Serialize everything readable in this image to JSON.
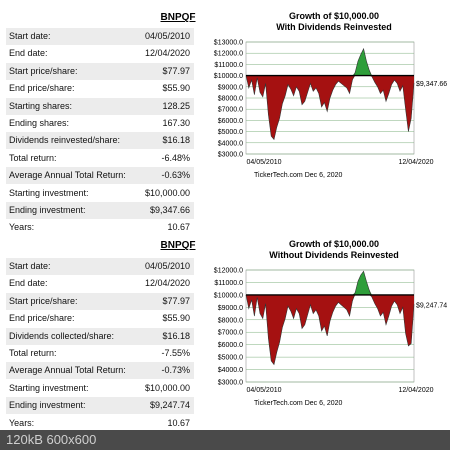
{
  "panels": [
    {
      "ticker": "BNPQF",
      "stats": [
        {
          "label": "Start date:",
          "value": "04/05/2010"
        },
        {
          "label": "End date:",
          "value": "12/04/2020"
        },
        {
          "label": "Start price/share:",
          "value": "$77.97"
        },
        {
          "label": "End price/share:",
          "value": "$55.90"
        },
        {
          "label": "Starting shares:",
          "value": "128.25"
        },
        {
          "label": "Ending shares:",
          "value": "167.30"
        },
        {
          "label": "Dividends reinvested/share:",
          "value": "$16.18"
        },
        {
          "label": "Total return:",
          "value": "-6.48%"
        },
        {
          "label": "Average Annual Total Return:",
          "value": "-0.63%"
        },
        {
          "label": "Starting investment:",
          "value": "$10,000.00"
        },
        {
          "label": "Ending investment:",
          "value": "$9,347.66"
        },
        {
          "label": "Years:",
          "value": "10.67"
        }
      ]
    },
    {
      "ticker": "BNPQF",
      "stats": [
        {
          "label": "Start date:",
          "value": "04/05/2010"
        },
        {
          "label": "End date:",
          "value": "12/04/2020"
        },
        {
          "label": "Start price/share:",
          "value": "$77.97"
        },
        {
          "label": "End price/share:",
          "value": "$55.90"
        },
        {
          "label": "Dividends collected/share:",
          "value": "$16.18"
        },
        {
          "label": "Total return:",
          "value": "-7.55%"
        },
        {
          "label": "Average Annual Total Return:",
          "value": "-0.73%"
        },
        {
          "label": "Starting investment:",
          "value": "$10,000.00"
        },
        {
          "label": "Ending investment:",
          "value": "$9,247.74"
        },
        {
          "label": "Years:",
          "value": "10.67"
        }
      ]
    }
  ],
  "chart_data": [
    {
      "type": "area",
      "title": "Growth of $10,000.00",
      "subtitle": "With Dividends Reinvested",
      "baseline": 10000,
      "ylim": [
        3000,
        13000
      ],
      "yticks": [
        "$13000.0",
        "$12000.0",
        "$11000.0",
        "$10000.0",
        "$9000.0",
        "$8000.0",
        "$7000.0",
        "$6000.0",
        "$5000.0",
        "$4000.0",
        "$3000.0"
      ],
      "x_start_label": "04/05/2010",
      "x_end_label": "12/04/2020",
      "end_value_label": "$9,347.66",
      "credit": "TickerTech.com  Dec 6, 2020",
      "values": [
        10000,
        8900,
        9600,
        8300,
        9800,
        8500,
        8100,
        9300,
        6500,
        4600,
        4300,
        5400,
        6200,
        7500,
        8200,
        9200,
        8800,
        8200,
        9000,
        8600,
        7400,
        7700,
        8500,
        9300,
        8600,
        8900,
        8400,
        7200,
        7600,
        6800,
        8000,
        8700,
        9200,
        9500,
        9300,
        9100,
        8900,
        8400,
        9600,
        10300,
        11300,
        11900,
        12400,
        11300,
        10500,
        9900,
        9400,
        9000,
        8400,
        8700,
        7700,
        8400,
        9200,
        9600,
        9300,
        8600,
        9100,
        7000,
        5000,
        6200,
        9347.66
      ],
      "colors": {
        "above": "#2e9e3a",
        "below": "#a51111",
        "baseline": "#000000",
        "grid": "#7fb07f"
      }
    },
    {
      "type": "area",
      "title": "Growth of $10,000.00",
      "subtitle": "Without Dividends Reinvested",
      "baseline": 10000,
      "ylim": [
        3000,
        12000
      ],
      "yticks": [
        "$12000.0",
        "$11000.0",
        "$10000.0",
        "$9000.0",
        "$8000.0",
        "$7000.0",
        "$6000.0",
        "$5000.0",
        "$4000.0",
        "$3000.0"
      ],
      "x_start_label": "04/05/2010",
      "x_end_label": "12/04/2020",
      "end_value_label": "$9,247.74",
      "credit": "TickerTech.com  Dec 6, 2020",
      "values": [
        10000,
        8900,
        9600,
        8300,
        9800,
        8500,
        8100,
        9300,
        6500,
        4700,
        4400,
        5400,
        6200,
        7400,
        8100,
        9100,
        8700,
        8100,
        8900,
        8500,
        7300,
        7600,
        8400,
        9200,
        8500,
        8800,
        8300,
        7100,
        7500,
        6700,
        7900,
        8600,
        9100,
        9400,
        9200,
        9000,
        8800,
        8300,
        9500,
        10200,
        11100,
        11600,
        11900,
        11100,
        10400,
        9800,
        9300,
        8900,
        8300,
        8600,
        7600,
        8300,
        9100,
        9500,
        9200,
        8500,
        9000,
        6900,
        5900,
        6100,
        9247.74
      ],
      "colors": {
        "above": "#2e9e3a",
        "below": "#a51111",
        "baseline": "#000000",
        "grid": "#7fb07f"
      }
    }
  ],
  "footer": {
    "text": "120kB 600x600"
  }
}
